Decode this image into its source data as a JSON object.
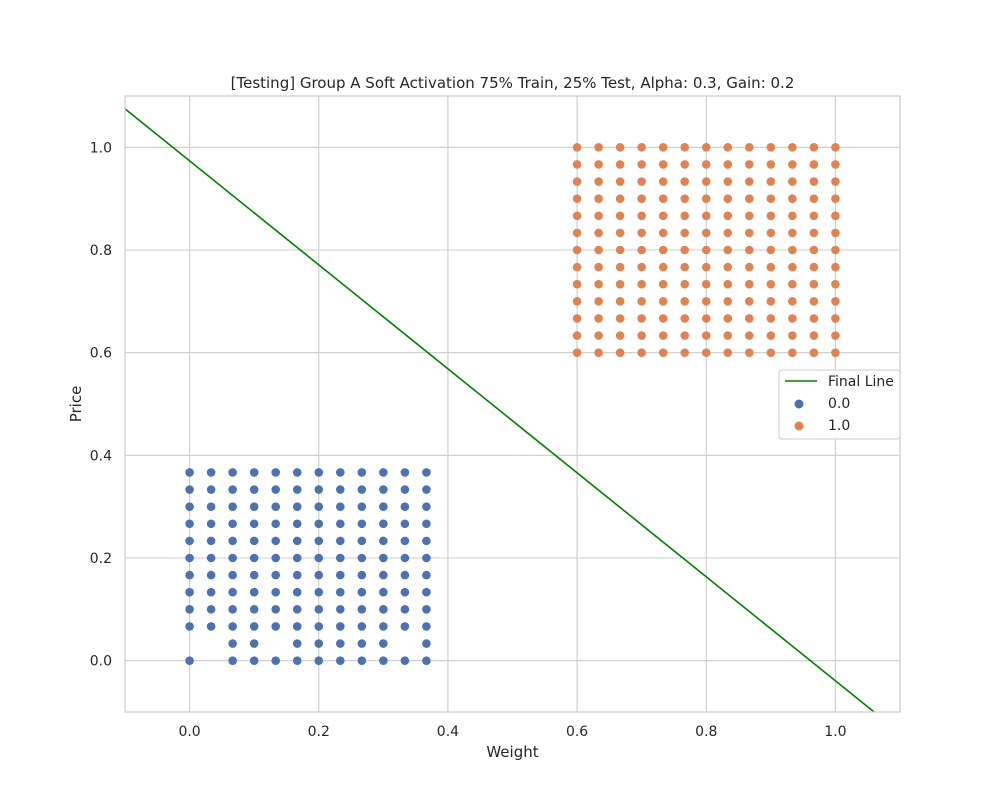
{
  "chart_data": {
    "type": "scatter",
    "title": "[Testing] Group A Soft Activation 75% Train, 25% Test, Alpha: 0.3, Gain: 0.2",
    "xlabel": "Weight",
    "ylabel": "Price",
    "xlim": [
      -0.1,
      1.1
    ],
    "ylim": [
      -0.1,
      1.1
    ],
    "x_ticks": [
      "0.0",
      "0.2",
      "0.4",
      "0.6",
      "0.8",
      "1.0"
    ],
    "y_ticks": [
      "0.0",
      "0.2",
      "0.4",
      "0.6",
      "0.8",
      "1.0"
    ],
    "grid": true,
    "legend_position": "center-right",
    "line": {
      "name": "Final Line",
      "color": "#008000",
      "points": [
        [
          -0.1,
          1.075
        ],
        [
          1.06,
          -0.1
        ]
      ]
    },
    "series": [
      {
        "name": "0.0",
        "color": "#4c72b0",
        "x_range": [
          0.0,
          0.3667
        ],
        "y_range": [
          0.0,
          0.3667
        ],
        "steps": 12,
        "missing": [
          [
            0.0333,
            0.0333
          ],
          [
            0.0,
            0.0333
          ],
          [
            0.1333,
            0.0333
          ],
          [
            0.3333,
            0.0333
          ],
          [
            0.0333,
            0.0
          ]
        ],
        "points_note": ""
      },
      {
        "name": "1.0",
        "color": "#dd8452",
        "x_range": [
          0.6,
          1.0
        ],
        "y_range": [
          0.6,
          1.0
        ],
        "steps": 13,
        "missing": []
      }
    ]
  }
}
